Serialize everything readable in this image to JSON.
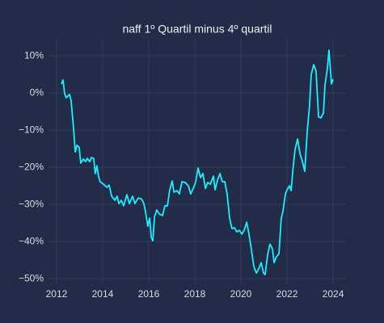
{
  "chart_data": {
    "type": "line",
    "title": "naff 1º Quartil minus 4º quartil",
    "x": [
      2012.21,
      2012.28,
      2012.35,
      2012.42,
      2012.56,
      2012.63,
      2012.74,
      2012.81,
      2012.88,
      2012.98,
      2013.05,
      2013.16,
      2013.26,
      2013.33,
      2013.44,
      2013.51,
      2013.61,
      2013.68,
      2013.75,
      2013.82,
      2013.89,
      2014.04,
      2014.18,
      2014.28,
      2014.39,
      2014.53,
      2014.63,
      2014.7,
      2014.81,
      2014.91,
      2015.05,
      2015.16,
      2015.3,
      2015.4,
      2015.54,
      2015.68,
      2015.79,
      2015.86,
      2015.96,
      2016.04,
      2016.11,
      2016.18,
      2016.25,
      2016.35,
      2016.46,
      2016.6,
      2016.7,
      2016.81,
      2016.91,
      2017.02,
      2017.09,
      2017.23,
      2017.33,
      2017.44,
      2017.58,
      2017.72,
      2017.82,
      2017.93,
      2018.04,
      2018.14,
      2018.25,
      2018.35,
      2018.46,
      2018.56,
      2018.67,
      2018.81,
      2018.88,
      2018.98,
      2019.09,
      2019.19,
      2019.3,
      2019.4,
      2019.51,
      2019.61,
      2019.72,
      2019.82,
      2019.93,
      2020.04,
      2020.14,
      2020.25,
      2020.35,
      2020.46,
      2020.56,
      2020.67,
      2020.77,
      2020.88,
      2020.98,
      2021.05,
      2021.16,
      2021.26,
      2021.37,
      2021.44,
      2021.54,
      2021.65,
      2021.75,
      2021.82,
      2021.93,
      2022.0,
      2022.11,
      2022.18,
      2022.25,
      2022.35,
      2022.46,
      2022.56,
      2022.67,
      2022.77,
      2022.88,
      2022.98,
      2023.05,
      2023.16,
      2023.26,
      2023.37,
      2023.47,
      2023.58,
      2023.65,
      2023.75,
      2023.82,
      2023.93,
      2024.0
    ],
    "series": [
      {
        "color": "#19f0ff",
        "values": [
          2.4,
          3.5,
          -0.2,
          -1.3,
          -0.4,
          -2.0,
          -9.8,
          -15.9,
          -14.1,
          -14.6,
          -18.9,
          -17.8,
          -18.5,
          -17.6,
          -18.5,
          -17.4,
          -17.6,
          -21.7,
          -19.6,
          -22.4,
          -23.9,
          -24.6,
          -25.4,
          -24.8,
          -27.8,
          -28.9,
          -27.8,
          -29.8,
          -28.9,
          -30.4,
          -27.4,
          -29.8,
          -27.8,
          -29.8,
          -28.3,
          -28.5,
          -29.8,
          -32.0,
          -35.9,
          -33.7,
          -38.9,
          -39.8,
          -33.3,
          -31.5,
          -32.6,
          -33.0,
          -30.4,
          -30.4,
          -26.1,
          -23.7,
          -26.7,
          -26.3,
          -27.2,
          -23.9,
          -24.1,
          -25.0,
          -27.2,
          -25.7,
          -23.9,
          -20.2,
          -22.8,
          -21.7,
          -25.7,
          -24.1,
          -24.6,
          -22.4,
          -26.1,
          -23.5,
          -21.7,
          -23.9,
          -23.9,
          -27.2,
          -33.7,
          -36.5,
          -36.3,
          -37.4,
          -37.0,
          -38.0,
          -37.0,
          -34.8,
          -38.0,
          -42.4,
          -46.7,
          -48.5,
          -47.4,
          -45.7,
          -48.5,
          -48.9,
          -43.5,
          -40.7,
          -42.0,
          -45.7,
          -44.1,
          -43.3,
          -33.7,
          -32.0,
          -27.2,
          -26.1,
          -25.0,
          -26.3,
          -21.1,
          -15.2,
          -12.4,
          -16.3,
          -18.5,
          -21.1,
          -10.2,
          -3.3,
          5.0,
          7.6,
          5.9,
          -6.5,
          -6.7,
          -5.4,
          2.2,
          6.5,
          11.5,
          2.4,
          3.7
        ]
      }
    ],
    "xlim": [
      2011.65,
      2024.56
    ],
    "xticks": [
      2012,
      2014,
      2016,
      2018,
      2020,
      2022,
      2024
    ],
    "ylim": [
      -51.5,
      14.8
    ],
    "yticks": [
      {
        "value": -50,
        "label": "−50%"
      },
      {
        "value": -40,
        "label": "−40%"
      },
      {
        "value": -30,
        "label": "−30%"
      },
      {
        "value": -20,
        "label": "−20%"
      },
      {
        "value": -10,
        "label": "−10%"
      },
      {
        "value": 0,
        "label": "0%"
      },
      {
        "value": 10,
        "label": "10%"
      }
    ],
    "grid": true
  }
}
